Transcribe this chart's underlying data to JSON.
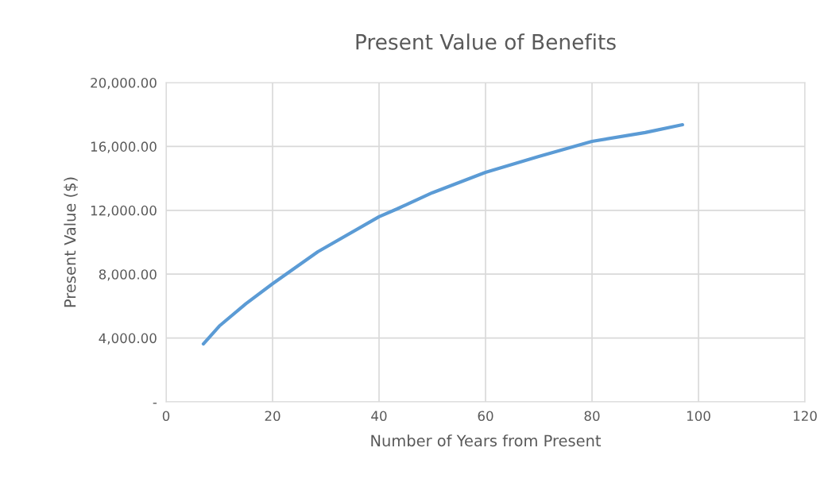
{
  "chart_data": {
    "type": "line",
    "title": "Present Value of Benefits",
    "xlabel": "Number of Years from Present",
    "ylabel": "Present Value ($)",
    "x": [
      7,
      10,
      15,
      20,
      28.5,
      40,
      43.4,
      50,
      60,
      70,
      80,
      90,
      97
    ],
    "series": [
      {
        "color": "#5b9bd5",
        "values": [
          3630,
          4750,
          6150,
          7400,
          9400,
          11600,
          12090,
          13100,
          14380,
          15370,
          16320,
          16870,
          17360
        ]
      }
    ],
    "xlim": [
      0,
      120
    ],
    "xticks": [
      0,
      20,
      40,
      60,
      80,
      100,
      120
    ],
    "ylim": [
      0,
      20000
    ],
    "yticks": [
      {
        "value": 0,
        "label": "-"
      },
      {
        "value": 4000,
        "label": "4,000.00"
      },
      {
        "value": 8000,
        "label": "8,000.00"
      },
      {
        "value": 12000,
        "label": "12,000.00"
      },
      {
        "value": 16000,
        "label": "16,000.00"
      },
      {
        "value": 20000,
        "label": "20,000.00"
      }
    ],
    "grid": true,
    "marker": "none",
    "line_style": "solid"
  }
}
